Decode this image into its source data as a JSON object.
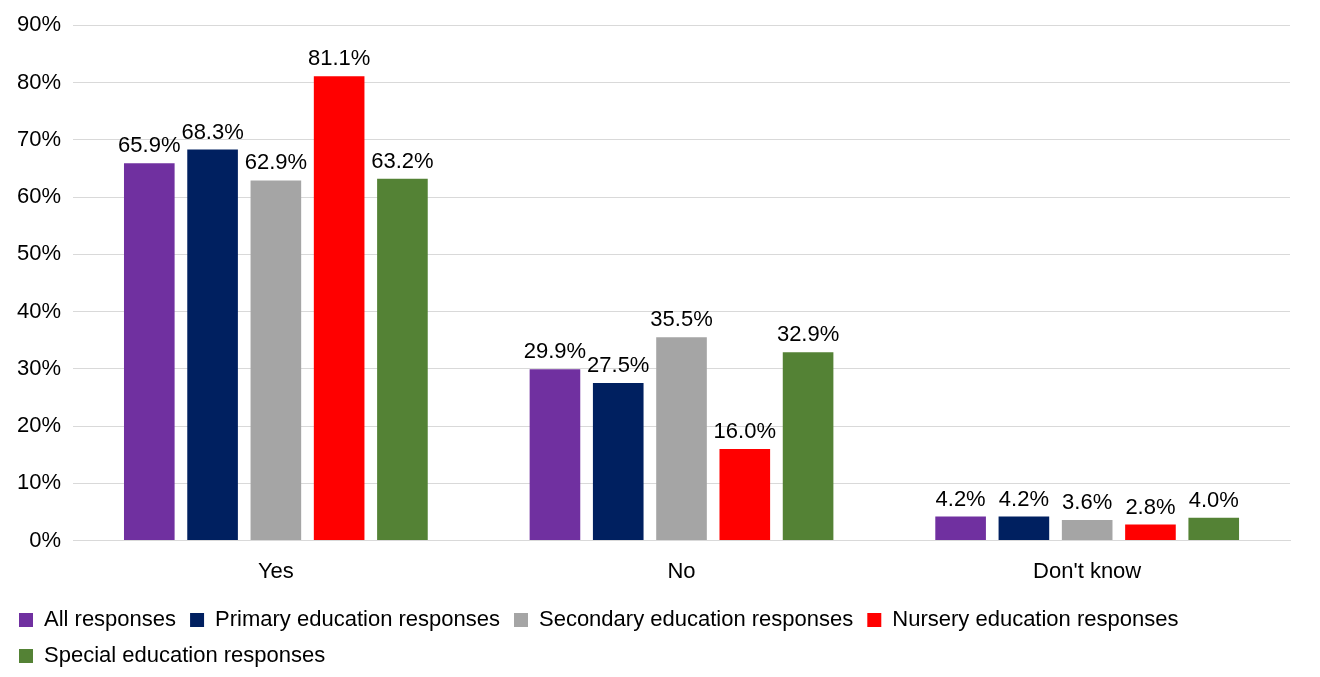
{
  "chart_data": {
    "type": "bar",
    "categories": [
      "Yes",
      "No",
      "Don't know"
    ],
    "series": [
      {
        "name": "All responses",
        "color": "#7030a0",
        "values": [
          65.9,
          29.9,
          4.2
        ],
        "value_labels": [
          "65.9%",
          "29.9%",
          "4.2%"
        ]
      },
      {
        "name": "Primary education responses",
        "color": "#002060",
        "values": [
          68.3,
          27.5,
          4.2
        ],
        "value_labels": [
          "68.3%",
          "27.5%",
          "4.2%"
        ]
      },
      {
        "name": "Secondary education responses",
        "color": "#a5a5a5",
        "values": [
          62.9,
          35.5,
          3.6
        ],
        "value_labels": [
          "62.9%",
          "35.5%",
          "3.6%"
        ]
      },
      {
        "name": "Nursery education responses",
        "color": "#ff0000",
        "values": [
          81.1,
          16.0,
          2.8
        ],
        "value_labels": [
          "81.1%",
          "16.0%",
          "2.8%"
        ]
      },
      {
        "name": "Special education responses",
        "color": "#548235",
        "values": [
          63.2,
          32.9,
          4.0
        ],
        "value_labels": [
          "63.2%",
          "32.9%",
          "4.0%"
        ]
      }
    ],
    "ylim": [
      0,
      90
    ],
    "yticks": [
      {
        "value": 0,
        "label": "0%"
      },
      {
        "value": 10,
        "label": "10%"
      },
      {
        "value": 20,
        "label": "20%"
      },
      {
        "value": 30,
        "label": "30%"
      },
      {
        "value": 40,
        "label": "40%"
      },
      {
        "value": 50,
        "label": "50%"
      },
      {
        "value": 60,
        "label": "60%"
      },
      {
        "value": 70,
        "label": "70%"
      },
      {
        "value": 80,
        "label": "80%"
      },
      {
        "value": 90,
        "label": "90%"
      }
    ],
    "grid": "y",
    "legend": "bottom"
  }
}
